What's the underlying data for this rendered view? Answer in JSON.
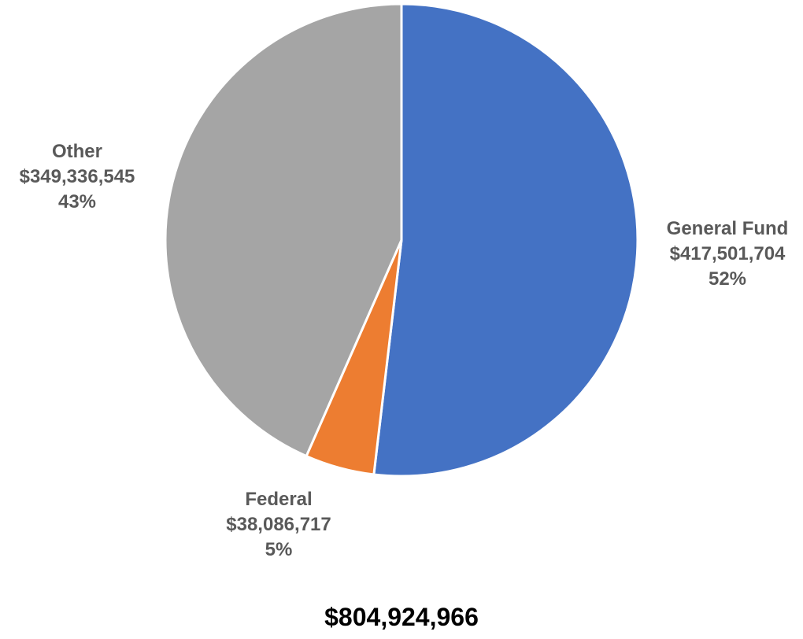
{
  "chart_data": {
    "type": "pie",
    "slices": [
      {
        "label": "General Fund",
        "amount": "$417,501,704",
        "percent_label": "52%",
        "value": 417501704,
        "color": "#4472C4"
      },
      {
        "label": "Federal",
        "amount": "$38,086,717",
        "percent_label": "5%",
        "value": 38086717,
        "color": "#ED7D31"
      },
      {
        "label": "Other",
        "amount": "$349,336,545",
        "percent_label": "43%",
        "value": 349336545,
        "color": "#A5A5A5"
      }
    ],
    "total": "$804,924,966",
    "label_color": "#595959",
    "slice_border_color": "#FFFFFF"
  }
}
